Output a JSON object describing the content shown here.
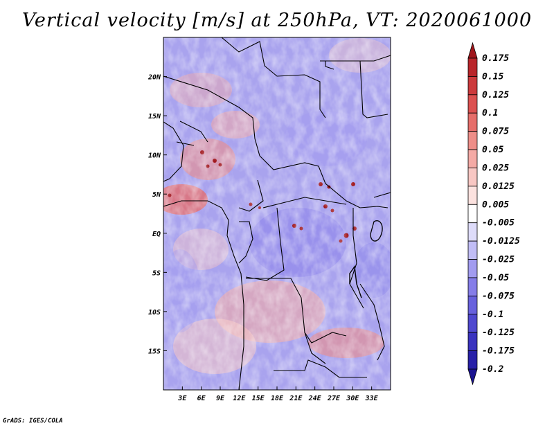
{
  "title": "Vertical velocity [m/s] at 250hPa, VT: 2020061000",
  "credit": "GrADS: IGES/COLA",
  "map": {
    "lon_range": [
      0,
      36
    ],
    "lat_range": [
      -20,
      25
    ],
    "lon_ticks": [
      "3E",
      "6E",
      "9E",
      "12E",
      "15E",
      "18E",
      "21E",
      "24E",
      "27E",
      "30E",
      "33E"
    ],
    "lat_ticks": [
      "20N",
      "15N",
      "10N",
      "5N",
      "EQ",
      "5S",
      "10S",
      "15S"
    ],
    "background_color": "#a9a3ee"
  },
  "colorbar": {
    "labels": [
      "0.175",
      "0.15",
      "0.125",
      "0.1",
      "0.075",
      "0.05",
      "0.025",
      "0.0125",
      "0.005",
      "-0.005",
      "-0.0125",
      "-0.025",
      "-0.05",
      "-0.075",
      "-0.1",
      "-0.125",
      "-0.175",
      "-0.2"
    ],
    "colors": [
      "#a0161c",
      "#b9252a",
      "#cc3a3c",
      "#dc5150",
      "#e66e6a",
      "#ee8e88",
      "#f4aaa5",
      "#f8c7c3",
      "#fce2df",
      "#ffffff",
      "#dedcfa",
      "#c1bdf6",
      "#a29cf0",
      "#857de8",
      "#6861dd",
      "#4f48cf",
      "#3a33bf",
      "#2820a8",
      "#1a1390"
    ]
  }
}
